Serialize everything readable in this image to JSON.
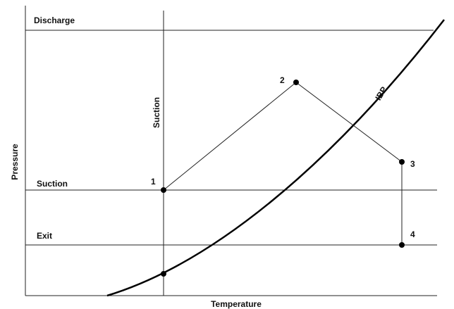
{
  "diagram": {
    "axes": {
      "x_label": "Temperature",
      "y_label": "Pressure"
    },
    "lines": {
      "discharge": "Discharge",
      "suction_horizontal": "Suction",
      "exit": "Exit",
      "suction_vertical": "Suction",
      "curve": "IBP"
    },
    "points": [
      {
        "label": "1"
      },
      {
        "label": "2"
      },
      {
        "label": "3"
      },
      {
        "label": "4"
      }
    ]
  }
}
